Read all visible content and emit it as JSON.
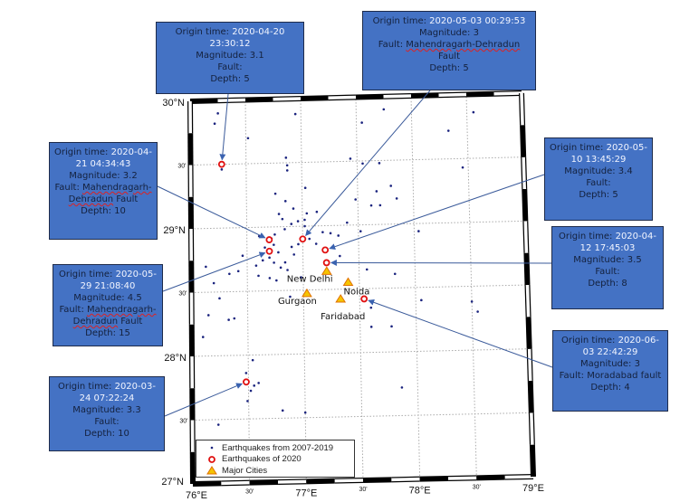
{
  "map": {
    "lon_range": [
      76,
      79
    ],
    "lat_range": [
      27,
      30
    ],
    "grid_step_deg": 0.5,
    "colors": {
      "callout_fill": "#4472C4",
      "background_quake": "#1a237e",
      "quake_2020": "#e01010",
      "city": "#f5c400"
    },
    "lat_labels": [
      {
        "lat": 30,
        "text": "30°N",
        "major": true
      },
      {
        "lat": 29.5,
        "text": "30'",
        "major": false
      },
      {
        "lat": 29,
        "text": "29°N",
        "major": true
      },
      {
        "lat": 28.5,
        "text": "30'",
        "major": false
      },
      {
        "lat": 28,
        "text": "28°N",
        "major": true
      },
      {
        "lat": 27.5,
        "text": "30'",
        "major": false
      },
      {
        "lat": 27,
        "text": "27°N",
        "major": true
      }
    ],
    "lon_labels": [
      {
        "lon": 76,
        "text": "76°E",
        "major": true
      },
      {
        "lon": 76.5,
        "text": "30'",
        "major": false
      },
      {
        "lon": 77,
        "text": "77°E",
        "major": true
      },
      {
        "lon": 77.5,
        "text": "30'",
        "major": false
      },
      {
        "lon": 78,
        "text": "78°E",
        "major": true
      },
      {
        "lon": 78.5,
        "text": "30'",
        "major": false
      },
      {
        "lon": 79,
        "text": "79°E",
        "major": true
      }
    ],
    "cities": [
      {
        "name": "New Delhi",
        "lon": 77.21,
        "lat": 28.64
      },
      {
        "name": "Noida",
        "lon": 77.4,
        "lat": 28.55
      },
      {
        "name": "Gurgaon",
        "lon": 77.03,
        "lat": 28.47
      },
      {
        "name": "Faridabad",
        "lon": 77.33,
        "lat": 28.42
      }
    ],
    "quakes_2020": [
      {
        "lon": 76.28,
        "lat": 29.5
      },
      {
        "lon": 76.7,
        "lat": 28.9
      },
      {
        "lon": 76.7,
        "lat": 28.81
      },
      {
        "lon": 77.0,
        "lat": 28.9
      },
      {
        "lon": 77.2,
        "lat": 28.81
      },
      {
        "lon": 77.21,
        "lat": 28.71
      },
      {
        "lon": 77.54,
        "lat": 28.42
      },
      {
        "lon": 76.48,
        "lat": 27.79
      }
    ],
    "quakes_2007_2019": [
      [
        76.22,
        29.82
      ],
      [
        76.25,
        29.9
      ],
      [
        76.28,
        29.46
      ],
      [
        76.52,
        29.7
      ],
      [
        76.95,
        29.88
      ],
      [
        76.86,
        29.54
      ],
      [
        76.87,
        29.48
      ],
      [
        76.87,
        29.44
      ],
      [
        76.76,
        29.26
      ],
      [
        76.85,
        29.2
      ],
      [
        76.92,
        29.14
      ],
      [
        76.96,
        29.04
      ],
      [
        77.03,
        29.3
      ],
      [
        77.04,
        29.1
      ],
      [
        77.13,
        29.11
      ],
      [
        77.02,
        29.0
      ],
      [
        76.82,
        29.06
      ],
      [
        76.79,
        29.1
      ],
      [
        76.84,
        28.98
      ],
      [
        76.75,
        28.94
      ],
      [
        76.61,
        28.93
      ],
      [
        76.72,
        28.91
      ],
      [
        76.74,
        28.86
      ],
      [
        76.66,
        28.84
      ],
      [
        76.7,
        28.76
      ],
      [
        76.78,
        28.8
      ],
      [
        76.74,
        28.72
      ],
      [
        76.8,
        28.68
      ],
      [
        76.86,
        28.66
      ],
      [
        76.84,
        28.72
      ],
      [
        76.9,
        28.84
      ],
      [
        76.92,
        28.78
      ],
      [
        76.96,
        28.86
      ],
      [
        77.06,
        28.9
      ],
      [
        77.12,
        28.86
      ],
      [
        77.18,
        28.95
      ],
      [
        77.25,
        28.94
      ],
      [
        76.64,
        28.74
      ],
      [
        76.58,
        28.7
      ],
      [
        76.6,
        28.62
      ],
      [
        76.7,
        28.6
      ],
      [
        76.76,
        28.58
      ],
      [
        76.88,
        28.45
      ],
      [
        76.98,
        28.6
      ],
      [
        76.46,
        28.78
      ],
      [
        76.42,
        28.66
      ],
      [
        76.34,
        28.64
      ],
      [
        76.13,
        28.7
      ],
      [
        76.2,
        28.57
      ],
      [
        76.25,
        28.45
      ],
      [
        76.15,
        28.32
      ],
      [
        76.33,
        28.28
      ],
      [
        76.38,
        28.29
      ],
      [
        76.1,
        28.15
      ],
      [
        76.54,
        27.96
      ],
      [
        76.48,
        27.86
      ],
      [
        76.55,
        27.76
      ],
      [
        76.59,
        27.78
      ],
      [
        76.52,
        27.72
      ],
      [
        76.49,
        27.64
      ],
      [
        76.8,
        27.56
      ],
      [
        76.23,
        27.46
      ],
      [
        76.2,
        27.2
      ],
      [
        77.75,
        29.9
      ],
      [
        77.55,
        29.8
      ],
      [
        77.44,
        29.52
      ],
      [
        77.55,
        29.48
      ],
      [
        77.7,
        29.48
      ],
      [
        77.8,
        29.3
      ],
      [
        77.67,
        29.26
      ],
      [
        77.62,
        29.15
      ],
      [
        77.7,
        29.15
      ],
      [
        77.85,
        29.2
      ],
      [
        77.48,
        29.2
      ],
      [
        77.4,
        29.02
      ],
      [
        77.52,
        28.95
      ],
      [
        77.32,
        28.92
      ],
      [
        78.04,
        28.94
      ],
      [
        78.33,
        29.72
      ],
      [
        78.56,
        29.86
      ],
      [
        78.45,
        29.43
      ],
      [
        77.33,
        28.76
      ],
      [
        77.57,
        28.65
      ],
      [
        77.82,
        28.61
      ],
      [
        78.05,
        28.4
      ],
      [
        78.5,
        28.38
      ],
      [
        78.55,
        28.3
      ],
      [
        77.6,
        28.35
      ],
      [
        77.6,
        28.2
      ],
      [
        77.78,
        28.2
      ],
      [
        77.86,
        27.72
      ],
      [
        77.0,
        27.54
      ],
      [
        77.02,
        29.05
      ],
      [
        76.9,
        29.02
      ]
    ]
  },
  "callouts": [
    {
      "origin_label": "Origin time: ",
      "origin_value": "2020-04-20 23:30:12",
      "magnitude": "Magnitude: 3.1",
      "fault_label": "Fault:",
      "fault_value": "",
      "depth": "Depth: 5"
    },
    {
      "origin_label": "Origin time: ",
      "origin_value": "2020-05-03 00:29:53",
      "magnitude": "Magnitude: 3",
      "fault_label": "Fault: ",
      "fault_value": "Mahendragarh-Dehradun",
      "fault_suffix": " Fault",
      "depth": "Depth: 5"
    },
    {
      "origin_label": "Origin time: ",
      "origin_value": "2020-04-21 04:34:43",
      "magnitude": "Magnitude: 3.2",
      "fault_label": "Fault: ",
      "fault_value": "Mahendragarh-Dehradun",
      "fault_suffix": " Fault",
      "depth": "Depth: 10"
    },
    {
      "origin_label": "Origin time: ",
      "origin_value": "2020-05-29 21:08:40",
      "magnitude": "Magnitude: 4.5",
      "fault_label": "Fault: ",
      "fault_value": "Mahendragarh-Dehradun",
      "fault_suffix": " Fault",
      "depth": "Depth: 15"
    },
    {
      "origin_label": "Origin time: ",
      "origin_value": "2020-03-24 07:22:24",
      "magnitude": "Magnitude: 3.3",
      "fault_label": "Fault:",
      "fault_value": "",
      "depth": "Depth: 10"
    },
    {
      "origin_label": "Origin time: ",
      "origin_value": "2020-05-10 13:45:29",
      "magnitude": "Magnitude: 3.4",
      "fault_label": "Fault:",
      "fault_value": "",
      "depth": "Depth: 5"
    },
    {
      "origin_label": "Origin time: ",
      "origin_value": "2020-04-12 17:45:03",
      "magnitude": "Magnitude: 3.5",
      "fault_label": "Fault:",
      "fault_value": "",
      "depth": "Depth: 8"
    },
    {
      "origin_label": "Origin time: ",
      "origin_value": "2020-06-03 22:42:29",
      "magnitude": "Magnitude: 3",
      "fault_label": "Fault: ",
      "fault_value": "Moradabad fault",
      "depth": "Depth: 4"
    }
  ],
  "legend": {
    "items": [
      "Earthquakes from 2007-2019",
      "Earthquakes of 2020",
      "Major Cities"
    ]
  }
}
